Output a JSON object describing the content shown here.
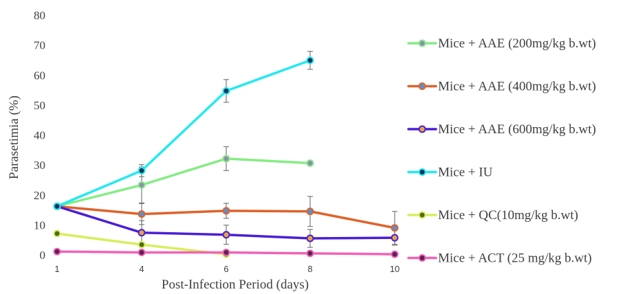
{
  "chart_data": {
    "type": "line",
    "title": "",
    "xlabel": "Post-Infection Period (days)",
    "ylabel": "Parasetimia (%)",
    "ylim": [
      0,
      80
    ],
    "y_ticks": [
      0,
      10,
      20,
      30,
      40,
      50,
      60,
      70,
      80
    ],
    "x": [
      1,
      4,
      6,
      8,
      10
    ],
    "x_tick_labels": [
      "1",
      "4",
      "6",
      "8",
      "10"
    ],
    "grid": false,
    "legend_position": "right",
    "series": [
      {
        "name": "Mice + AAE (200mg/kg b.wt)",
        "color": "#86EC84",
        "marker_color": "#8E8EB0",
        "values": [
          16.2,
          23.3,
          32.1,
          30.6,
          null
        ],
        "errors": [
          null,
          6.0,
          4.0,
          null,
          null
        ]
      },
      {
        "name": "Mice + AAE (400mg/kg b.wt)",
        "color": "#E0622A",
        "marker_color": "#5B8FD0",
        "values": [
          16.2,
          13.6,
          14.7,
          14.5,
          9.0
        ],
        "errors": [
          null,
          3.5,
          2.5,
          5.0,
          5.5
        ]
      },
      {
        "name": "Mice + AAE (600mg/kg b.wt)",
        "color": "#4B1FD6",
        "marker_color": "#E8A53A",
        "values": [
          16.2,
          7.4,
          6.7,
          5.5,
          5.7
        ],
        "errors": [
          null,
          4.0,
          3.2,
          3.0,
          2.5
        ]
      },
      {
        "name": "Mice + IU",
        "color": "#22EAF0",
        "marker_color": "#14335A",
        "values": [
          16.2,
          28.1,
          54.7,
          64.9,
          null
        ],
        "errors": [
          null,
          2.0,
          3.8,
          3.0,
          null
        ]
      },
      {
        "name": "Mice + QC(10mg/kg b.wt)",
        "color": "#D8EE5E",
        "marker_color": "#4F6B1A",
        "values": [
          7.1,
          3.4,
          0.2,
          null,
          null
        ],
        "errors": [
          null,
          null,
          null,
          null,
          null
        ]
      },
      {
        "name": "Mice + ACT (25 mg/kg b.wt)",
        "color": "#F262B6",
        "marker_color": "#5A2356",
        "values": [
          1.1,
          0.8,
          0.8,
          0.5,
          0.2
        ],
        "errors": [
          null,
          null,
          null,
          null,
          null
        ]
      }
    ]
  }
}
